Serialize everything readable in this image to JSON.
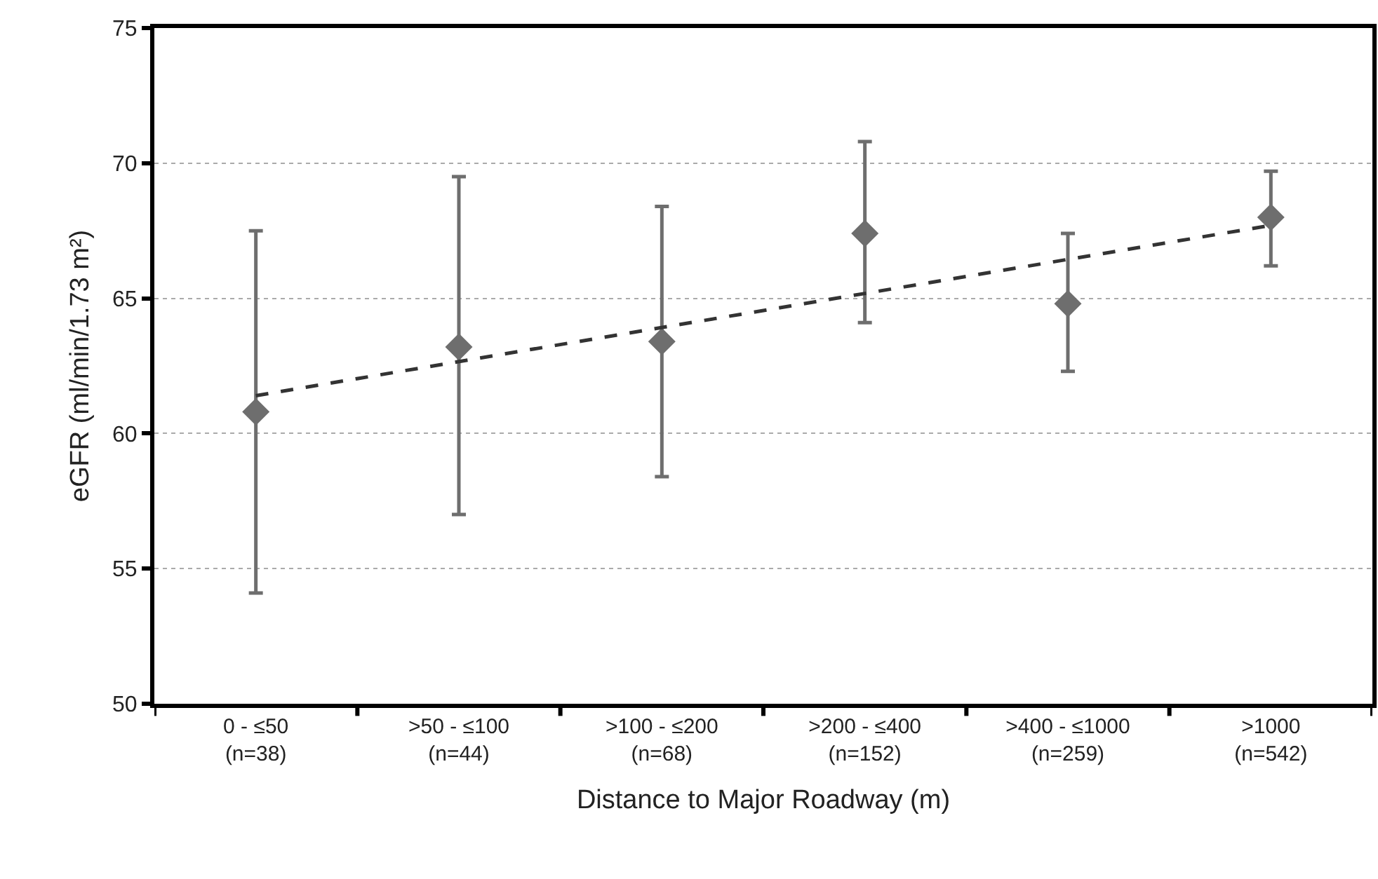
{
  "chart_data": {
    "type": "scatter",
    "xlabel": "Distance to Major Roadway (m)",
    "ylabel": "eGFR (ml/min/1.73 m²)",
    "categories": [
      "0 - ≤50\n(n=38)",
      ">50 - ≤100\n(n=44)",
      ">100 - ≤200\n(n=68)",
      ">200 - ≤400\n(n=152)",
      ">400 - ≤1000\n(n=259)",
      ">1000\n(n=542)"
    ],
    "series": [
      {
        "color": "#6e6e6e",
        "marker": "diamond",
        "values": [
          60.8,
          63.2,
          63.4,
          67.4,
          64.8,
          68.0
        ],
        "errors": [
          [
            54.1,
            67.5
          ],
          [
            57.0,
            69.5
          ],
          [
            58.4,
            68.4
          ],
          [
            64.1,
            70.8
          ],
          [
            62.3,
            67.4
          ],
          [
            66.2,
            69.7
          ]
        ]
      },
      {
        "type": "line",
        "color": "#333333",
        "line_style": "dashed",
        "marker": "none",
        "x": [
          "0 - ≤50\n(n=38)",
          ">1000\n(n=542)"
        ],
        "values": [
          61.4,
          67.7
        ]
      }
    ],
    "ylim": [
      50,
      75
    ],
    "yticks": [
      50,
      55,
      60,
      65,
      70,
      75
    ],
    "grid": "y"
  }
}
